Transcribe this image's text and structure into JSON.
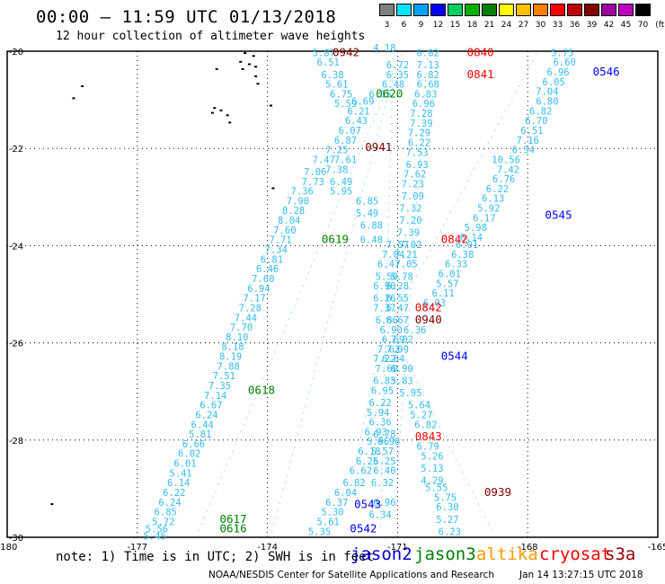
{
  "header": {
    "title": "00:00 – 11:59 UTC 01/13/2018",
    "subtitle": "12 hour collection of altimeter wave heights"
  },
  "color_scale": {
    "unit_label": "(ft)",
    "entries": [
      {
        "value": "3",
        "color": "#7f7f7f"
      },
      {
        "value": "6",
        "color": "#00e5ff"
      },
      {
        "value": "9",
        "color": "#00a2ff"
      },
      {
        "value": "12",
        "color": "#0000ff"
      },
      {
        "value": "15",
        "color": "#00d060"
      },
      {
        "value": "18",
        "color": "#00b000"
      },
      {
        "value": "21",
        "color": "#008000"
      },
      {
        "value": "24",
        "color": "#ffff00"
      },
      {
        "value": "27",
        "color": "#ffc000"
      },
      {
        "value": "30",
        "color": "#ff8000"
      },
      {
        "value": "33",
        "color": "#ff0000"
      },
      {
        "value": "36",
        "color": "#c00000"
      },
      {
        "value": "39",
        "color": "#800000"
      },
      {
        "value": "42",
        "color": "#a000a0"
      },
      {
        "value": "45",
        "color": "#c000c0"
      },
      {
        "value": "70",
        "color": "#000000"
      }
    ]
  },
  "axes": {
    "lon_ticks": [
      {
        "lon": -180,
        "label": "-180"
      },
      {
        "lon": -177,
        "label": "-177"
      },
      {
        "lon": -174,
        "label": "-174"
      },
      {
        "lon": -171,
        "label": "-171"
      },
      {
        "lon": -168,
        "label": "-168"
      },
      {
        "lon": -165,
        "label": "-165"
      }
    ],
    "lat_ticks": [
      {
        "lat": -20,
        "label": "-20"
      },
      {
        "lat": -22,
        "label": "-22"
      },
      {
        "lat": -24,
        "label": "-24"
      },
      {
        "lat": -26,
        "label": "-26"
      },
      {
        "lat": -28,
        "label": "-28"
      },
      {
        "lat": -30,
        "label": "-30"
      }
    ],
    "lon_range": [
      -180,
      -165
    ],
    "lat_range": [
      -30,
      -20
    ]
  },
  "tracks": [
    {
      "id": "t1",
      "points": [
        [
          -170.9,
          -20.05
        ],
        [
          -175.6,
          -29.9
        ]
      ]
    },
    {
      "id": "t2",
      "points": [
        [
          -171.2,
          -20.85
        ],
        [
          -173.9,
          -29.9
        ]
      ]
    },
    {
      "id": "t3",
      "points": [
        [
          -171.1,
          -20.0
        ],
        [
          -171.4,
          -29.9
        ]
      ]
    },
    {
      "id": "t4",
      "points": [
        [
          -170.3,
          -20.0
        ],
        [
          -171.1,
          -29.9
        ]
      ]
    },
    {
      "id": "t5",
      "points": [
        [
          -167.8,
          -20.05
        ],
        [
          -171.4,
          -26.0
        ],
        [
          -172.0,
          -28.6
        ]
      ]
    },
    {
      "id": "t6",
      "points": [
        [
          -171.0,
          -26.0
        ],
        [
          -168.8,
          -29.9
        ]
      ]
    }
  ],
  "pass_labels": [
    {
      "text": "0942",
      "color": "#800000",
      "lon": -172.5,
      "lat": -20.1
    },
    {
      "text": "0840",
      "color": "#ff0000",
      "lon": -169.4,
      "lat": -20.1
    },
    {
      "text": "0841",
      "color": "#ff0000",
      "lon": -169.4,
      "lat": -20.55
    },
    {
      "text": "0546",
      "color": "#0000ff",
      "lon": -166.5,
      "lat": -20.5
    },
    {
      "text": "0620",
      "color": "#008000",
      "lon": -171.5,
      "lat": -20.95
    },
    {
      "text": "0941",
      "color": "#800000",
      "lon": -171.75,
      "lat": -22.05
    },
    {
      "text": "0545",
      "color": "#0000ff",
      "lon": -167.6,
      "lat": -23.45
    },
    {
      "text": "0619",
      "color": "#008000",
      "lon": -172.75,
      "lat": -23.95
    },
    {
      "text": "0842",
      "color": "#ff0000",
      "lon": -170.0,
      "lat": -23.95
    },
    {
      "text": "0842",
      "color": "#ff0000",
      "lon": -170.6,
      "lat": -25.35
    },
    {
      "text": "0940",
      "color": "#800000",
      "lon": -170.6,
      "lat": -25.6
    },
    {
      "text": "0544",
      "color": "#0000ff",
      "lon": -170.0,
      "lat": -26.35
    },
    {
      "text": "0618",
      "color": "#008000",
      "lon": -174.45,
      "lat": -27.05
    },
    {
      "text": "0843",
      "color": "#ff0000",
      "lon": -170.6,
      "lat": -28.0
    },
    {
      "text": "0939",
      "color": "#800000",
      "lon": -169.0,
      "lat": -29.15
    },
    {
      "text": "0543",
      "color": "#0000ff",
      "lon": -172.0,
      "lat": -29.4
    },
    {
      "text": "0617",
      "color": "#008000",
      "lon": -175.1,
      "lat": -29.7
    },
    {
      "text": "0616",
      "color": "#008000",
      "lon": -175.1,
      "lat": -29.9
    },
    {
      "text": "0542",
      "color": "#0000ff",
      "lon": -172.1,
      "lat": -29.9
    }
  ],
  "wave_labels": [
    {
      "v": "5.87",
      "lon": -172.7,
      "lat": -20.1
    },
    {
      "v": "4.18",
      "lon": -171.3,
      "lat": -20.0
    },
    {
      "v": "6.51",
      "lon": -172.6,
      "lat": -20.3
    },
    {
      "v": "6.72",
      "lon": -171.0,
      "lat": -20.35
    },
    {
      "v": "6.38",
      "lon": -172.5,
      "lat": -20.55
    },
    {
      "v": "6.35",
      "lon": -171.0,
      "lat": -20.55
    },
    {
      "v": "5.61",
      "lon": -172.4,
      "lat": -20.75
    },
    {
      "v": "6.48",
      "lon": -171.1,
      "lat": -20.75
    },
    {
      "v": "6.75",
      "lon": -172.3,
      "lat": -20.95
    },
    {
      "v": "6.15",
      "lon": -171.4,
      "lat": -20.95
    },
    {
      "v": "5.59",
      "lon": -172.2,
      "lat": -21.15
    },
    {
      "v": "6.69",
      "lon": -171.8,
      "lat": -21.1
    },
    {
      "v": "6.21",
      "lon": -171.9,
      "lat": -21.3
    },
    {
      "v": "6.43",
      "lon": -171.95,
      "lat": -21.5
    },
    {
      "v": "6.07",
      "lon": -172.1,
      "lat": -21.7
    },
    {
      "v": "6.87",
      "lon": -172.2,
      "lat": -21.9
    },
    {
      "v": "7.25",
      "lon": -172.4,
      "lat": -22.1
    },
    {
      "v": "7.61",
      "lon": -172.2,
      "lat": -22.3
    },
    {
      "v": "7.47",
      "lon": -172.7,
      "lat": -22.3
    },
    {
      "v": "7.06",
      "lon": -172.9,
      "lat": -22.55
    },
    {
      "v": "7.38",
      "lon": -172.4,
      "lat": -22.5
    },
    {
      "v": "7.73",
      "lon": -172.95,
      "lat": -22.75
    },
    {
      "v": "6.49",
      "lon": -172.3,
      "lat": -22.75
    },
    {
      "v": "7.36",
      "lon": -173.2,
      "lat": -22.95
    },
    {
      "v": "5.95",
      "lon": -172.3,
      "lat": -22.95
    },
    {
      "v": "7.90",
      "lon": -173.3,
      "lat": -23.15
    },
    {
      "v": "6.85",
      "lon": -171.7,
      "lat": -23.15
    },
    {
      "v": "8.28",
      "lon": -173.4,
      "lat": -23.35
    },
    {
      "v": "5.49",
      "lon": -171.7,
      "lat": -23.4
    },
    {
      "v": "8.04",
      "lon": -173.5,
      "lat": -23.55
    },
    {
      "v": "6.88",
      "lon": -171.6,
      "lat": -23.65
    },
    {
      "v": "7.60",
      "lon": -173.6,
      "lat": -23.75
    },
    {
      "v": "7.71",
      "lon": -173.7,
      "lat": -23.95
    },
    {
      "v": "6.48",
      "lon": -171.6,
      "lat": -23.95
    },
    {
      "v": "7.34",
      "lon": -173.8,
      "lat": -24.15
    },
    {
      "v": "6.81",
      "lon": -173.9,
      "lat": -24.35
    },
    {
      "v": "6.46",
      "lon": -174.0,
      "lat": -24.55
    },
    {
      "v": "7.60",
      "lon": -174.1,
      "lat": -24.75
    },
    {
      "v": "6.94",
      "lon": -174.2,
      "lat": -24.95
    },
    {
      "v": "7.17",
      "lon": -174.3,
      "lat": -25.15
    },
    {
      "v": "7.28",
      "lon": -174.4,
      "lat": -25.35
    },
    {
      "v": "7.44",
      "lon": -174.5,
      "lat": -25.55
    },
    {
      "v": "7.70",
      "lon": -174.6,
      "lat": -25.75
    },
    {
      "v": "8.10",
      "lon": -174.7,
      "lat": -25.95
    },
    {
      "v": "8.18",
      "lon": -174.8,
      "lat": -26.15
    },
    {
      "v": "8.19",
      "lon": -174.85,
      "lat": -26.35
    },
    {
      "v": "7.88",
      "lon": -174.9,
      "lat": -26.55
    },
    {
      "v": "7.51",
      "lon": -175.0,
      "lat": -26.75
    },
    {
      "v": "7.35",
      "lon": -175.1,
      "lat": -26.95
    },
    {
      "v": "7.14",
      "lon": -175.2,
      "lat": -27.15
    },
    {
      "v": "6.67",
      "lon": -175.3,
      "lat": -27.35
    },
    {
      "v": "6.24",
      "lon": -175.4,
      "lat": -27.55
    },
    {
      "v": "6.44",
      "lon": -175.5,
      "lat": -27.75
    },
    {
      "v": "5.81",
      "lon": -175.55,
      "lat": -27.95
    },
    {
      "v": "6.66",
      "lon": -175.7,
      "lat": -28.15
    },
    {
      "v": "6.02",
      "lon": -175.8,
      "lat": -28.35
    },
    {
      "v": "6.01",
      "lon": -175.9,
      "lat": -28.55
    },
    {
      "v": "5.41",
      "lon": -176.0,
      "lat": -28.75
    },
    {
      "v": "6.14",
      "lon": -176.05,
      "lat": -28.95
    },
    {
      "v": "6.22",
      "lon": -176.15,
      "lat": -29.15
    },
    {
      "v": "6.24",
      "lon": -176.25,
      "lat": -29.35
    },
    {
      "v": "6.85",
      "lon": -176.35,
      "lat": -29.55
    },
    {
      "v": "5.72",
      "lon": -176.4,
      "lat": -29.75
    },
    {
      "v": "5.56",
      "lon": -176.55,
      "lat": -29.9
    },
    {
      "v": "5.45",
      "lon": -176.6,
      "lat": -30.05
    },
    {
      "v": "6.82",
      "lon": -170.3,
      "lat": -20.1
    },
    {
      "v": "7.13",
      "lon": -170.3,
      "lat": -20.35
    },
    {
      "v": "6.82",
      "lon": -170.3,
      "lat": -20.55
    },
    {
      "v": "6.68",
      "lon": -170.3,
      "lat": -20.75
    },
    {
      "v": "6.83",
      "lon": -170.35,
      "lat": -20.95
    },
    {
      "v": "6.96",
      "lon": -170.4,
      "lat": -21.15
    },
    {
      "v": "7.28",
      "lon": -170.45,
      "lat": -21.35
    },
    {
      "v": "7.39",
      "lon": -170.45,
      "lat": -21.55
    },
    {
      "v": "7.29",
      "lon": -170.5,
      "lat": -21.75
    },
    {
      "v": "6.22",
      "lon": -170.5,
      "lat": -21.95
    },
    {
      "v": "7.53",
      "lon": -170.55,
      "lat": -22.15
    },
    {
      "v": "6.93",
      "lon": -170.55,
      "lat": -22.4
    },
    {
      "v": "7.62",
      "lon": -170.6,
      "lat": -22.6
    },
    {
      "v": "7.23",
      "lon": -170.65,
      "lat": -22.8
    },
    {
      "v": "7.09",
      "lon": -170.65,
      "lat": -23.05
    },
    {
      "v": "7.32",
      "lon": -170.7,
      "lat": -23.3
    },
    {
      "v": "7.20",
      "lon": -170.7,
      "lat": -23.55
    },
    {
      "v": "7.39",
      "lon": -170.75,
      "lat": -23.8
    },
    {
      "v": "7.57",
      "lon": -171.0,
      "lat": -24.05
    },
    {
      "v": "7.02",
      "lon": -170.7,
      "lat": -24.05
    },
    {
      "v": "7.04",
      "lon": -171.1,
      "lat": -24.25
    },
    {
      "v": "7.21",
      "lon": -170.8,
      "lat": -24.25
    },
    {
      "v": "6.47",
      "lon": -171.2,
      "lat": -24.45
    },
    {
      "v": "7.05",
      "lon": -170.8,
      "lat": -24.45
    },
    {
      "v": "5.50",
      "lon": -171.25,
      "lat": -24.7
    },
    {
      "v": "5.78",
      "lon": -170.9,
      "lat": -24.7
    },
    {
      "v": "6.90",
      "lon": -171.3,
      "lat": -24.9
    },
    {
      "v": "6.28",
      "lon": -171.0,
      "lat": -24.9
    },
    {
      "v": "6.26",
      "lon": -171.3,
      "lat": -25.15
    },
    {
      "v": "6.55",
      "lon": -171.0,
      "lat": -25.15
    },
    {
      "v": "7.37",
      "lon": -171.3,
      "lat": -25.35
    },
    {
      "v": "6.47",
      "lon": -171.0,
      "lat": -25.35
    },
    {
      "v": "6.86",
      "lon": -171.25,
      "lat": -25.6
    },
    {
      "v": "6.67",
      "lon": -171.0,
      "lat": -25.6
    },
    {
      "v": "6.90",
      "lon": -171.15,
      "lat": -25.8
    },
    {
      "v": "6.36",
      "lon": -170.6,
      "lat": -25.8
    },
    {
      "v": "6.69",
      "lon": -171.1,
      "lat": -26.0
    },
    {
      "v": "7.02",
      "lon": -170.9,
      "lat": -26.0
    },
    {
      "v": "7.62",
      "lon": -171.2,
      "lat": -26.2
    },
    {
      "v": "7.09",
      "lon": -171.0,
      "lat": -26.2
    },
    {
      "v": "6.64",
      "lon": -171.1,
      "lat": -26.4
    },
    {
      "v": "7.22",
      "lon": -171.3,
      "lat": -26.4
    },
    {
      "v": "7.60",
      "lon": -171.25,
      "lat": -26.6
    },
    {
      "v": "6.90",
      "lon": -170.9,
      "lat": -26.6
    },
    {
      "v": "6.83",
      "lon": -171.3,
      "lat": -26.85
    },
    {
      "v": "5.83",
      "lon": -170.9,
      "lat": -26.85
    },
    {
      "v": "6.95",
      "lon": -171.35,
      "lat": -27.05
    },
    {
      "v": "5.95",
      "lon": -170.7,
      "lat": -27.1
    },
    {
      "v": "6.22",
      "lon": -171.4,
      "lat": -27.3
    },
    {
      "v": "5.64",
      "lon": -170.5,
      "lat": -27.35
    },
    {
      "v": "5.94",
      "lon": -171.45,
      "lat": -27.5
    },
    {
      "v": "5.27",
      "lon": -170.45,
      "lat": -27.55
    },
    {
      "v": "6.36",
      "lon": -171.4,
      "lat": -27.7
    },
    {
      "v": "6.82",
      "lon": -170.35,
      "lat": -27.75
    },
    {
      "v": "6.93",
      "lon": -171.5,
      "lat": -27.9
    },
    {
      "v": "6.78",
      "lon": -171.3,
      "lat": -27.95
    },
    {
      "v": "5.96",
      "lon": -171.45,
      "lat": -28.1
    },
    {
      "v": "6.96",
      "lon": -171.2,
      "lat": -28.1
    },
    {
      "v": "6.79",
      "lon": -170.3,
      "lat": -28.2
    },
    {
      "v": "6.18",
      "lon": -171.65,
      "lat": -28.3
    },
    {
      "v": "5.57",
      "lon": -171.35,
      "lat": -28.3
    },
    {
      "v": "5.26",
      "lon": -170.2,
      "lat": -28.4
    },
    {
      "v": "6.25",
      "lon": -171.7,
      "lat": -28.5
    },
    {
      "v": "6.25",
      "lon": -171.3,
      "lat": -28.5
    },
    {
      "v": "5.13",
      "lon": -170.2,
      "lat": -28.65
    },
    {
      "v": "6.62",
      "lon": -171.85,
      "lat": -28.7
    },
    {
      "v": "6.40",
      "lon": -171.3,
      "lat": -28.7
    },
    {
      "v": "4.29",
      "lon": -170.2,
      "lat": -28.9
    },
    {
      "v": "6.82",
      "lon": -172.0,
      "lat": -28.95
    },
    {
      "v": "6.32",
      "lon": -171.35,
      "lat": -28.95
    },
    {
      "v": "5.55",
      "lon": -170.1,
      "lat": -29.05
    },
    {
      "v": "6.04",
      "lon": -172.2,
      "lat": -29.15
    },
    {
      "v": "5.75",
      "lon": -169.9,
      "lat": -29.25
    },
    {
      "v": "6.37",
      "lon": -172.4,
      "lat": -29.35
    },
    {
      "v": "6.96",
      "lon": -171.3,
      "lat": -29.35
    },
    {
      "v": "6.30",
      "lon": -169.85,
      "lat": -29.45
    },
    {
      "v": "5.30",
      "lon": -172.5,
      "lat": -29.55
    },
    {
      "v": "6.34",
      "lon": -171.4,
      "lat": -29.6
    },
    {
      "v": "5.27",
      "lon": -169.85,
      "lat": -29.7
    },
    {
      "v": "5.61",
      "lon": -172.6,
      "lat": -29.75
    },
    {
      "v": "5.35",
      "lon": -172.8,
      "lat": -29.95
    },
    {
      "v": "6.23",
      "lon": -169.8,
      "lat": -29.95
    },
    {
      "v": "5.75",
      "lon": -167.2,
      "lat": -20.1
    },
    {
      "v": "6.60",
      "lon": -167.15,
      "lat": -20.3
    },
    {
      "v": "6.96",
      "lon": -167.3,
      "lat": -20.5
    },
    {
      "v": "6.05",
      "lon": -167.4,
      "lat": -20.7
    },
    {
      "v": "7.04",
      "lon": -167.55,
      "lat": -20.9
    },
    {
      "v": "6.80",
      "lon": -167.55,
      "lat": -21.1
    },
    {
      "v": "6.82",
      "lon": -167.7,
      "lat": -21.3
    },
    {
      "v": "6.70",
      "lon": -167.8,
      "lat": -21.5
    },
    {
      "v": "6.51",
      "lon": -167.9,
      "lat": -21.7
    },
    {
      "v": "7.16",
      "lon": -168.0,
      "lat": -21.9
    },
    {
      "v": "6.34",
      "lon": -168.1,
      "lat": -22.1
    },
    {
      "v": "10.56",
      "lon": -168.5,
      "lat": -22.3
    },
    {
      "v": "7.42",
      "lon": -168.45,
      "lat": -22.5
    },
    {
      "v": "6.76",
      "lon": -168.55,
      "lat": -22.7
    },
    {
      "v": "6.22",
      "lon": -168.7,
      "lat": -22.9
    },
    {
      "v": "6.13",
      "lon": -168.8,
      "lat": -23.1
    },
    {
      "v": "5.92",
      "lon": -168.9,
      "lat": -23.3
    },
    {
      "v": "6.17",
      "lon": -169.0,
      "lat": -23.5
    },
    {
      "v": "5.98",
      "lon": -169.2,
      "lat": -23.7
    },
    {
      "v": "6.14",
      "lon": -169.3,
      "lat": -23.9
    },
    {
      "v": "6.01",
      "lon": -169.4,
      "lat": -24.05
    },
    {
      "v": "6.38",
      "lon": -169.5,
      "lat": -24.25
    },
    {
      "v": "6.33",
      "lon": -169.65,
      "lat": -24.45
    },
    {
      "v": "6.01",
      "lon": -169.8,
      "lat": -24.65
    },
    {
      "v": "5.57",
      "lon": -169.85,
      "lat": -24.85
    },
    {
      "v": "6.11",
      "lon": -169.95,
      "lat": -25.05
    },
    {
      "v": "6.03",
      "lon": -170.15,
      "lat": -25.25
    }
  ],
  "land_dots": [
    [
      -174.55,
      -20.02
    ],
    [
      -174.35,
      -20.08
    ],
    [
      -174.65,
      -20.2
    ],
    [
      -174.45,
      -20.25
    ],
    [
      -174.3,
      -20.3
    ],
    [
      -174.6,
      -20.35
    ],
    [
      -175.2,
      -20.35
    ],
    [
      -174.3,
      -20.5
    ],
    [
      -174.25,
      -20.65
    ],
    [
      -178.3,
      -20.7
    ],
    [
      -178.5,
      -20.95
    ],
    [
      -173.95,
      -21.1
    ],
    [
      -175.25,
      -21.15
    ],
    [
      -175.1,
      -21.2
    ],
    [
      -175.3,
      -21.25
    ],
    [
      -174.95,
      -21.3
    ],
    [
      -174.9,
      -21.45
    ],
    [
      -173.9,
      -22.8
    ],
    [
      -179.0,
      -29.3
    ]
  ],
  "footer": {
    "note": "note: 1) Time is in UTC; 2) SWH is in feet",
    "credit": "NOAA/NESDIS Center for Satellite Applications and Research",
    "generated": "Jan 14 13:27:15 UTC 2018"
  },
  "satellites": [
    {
      "name": "jason2",
      "color": "#0000cc"
    },
    {
      "name": "jason3",
      "color": "#008000"
    },
    {
      "name": "altika",
      "color": "#ff9900"
    },
    {
      "name": "cryosat",
      "color": "#ff0000"
    },
    {
      "name": "s3a",
      "color": "#990000"
    }
  ],
  "wave_label_color": "#33bbee"
}
